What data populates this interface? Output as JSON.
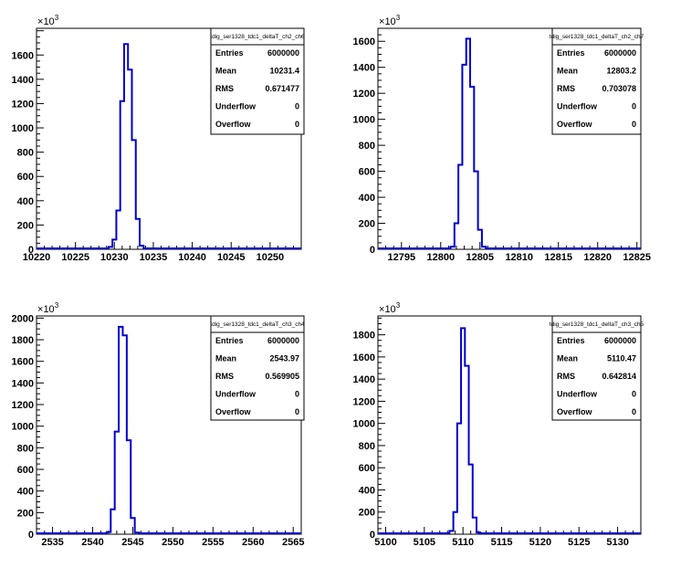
{
  "chart_data": [
    {
      "type": "histogram",
      "title": "tdig_ser1328_tdc1_deltaT_ch2_ch6",
      "y_exponent": "10",
      "y_exponent_power": "3",
      "xlim": [
        10220,
        10254
      ],
      "ylim": [
        0,
        1820
      ],
      "x_ticks": [
        10220,
        10225,
        10230,
        10235,
        10240,
        10245,
        10250
      ],
      "y_ticks": [
        0,
        200,
        400,
        600,
        800,
        1000,
        1200,
        1400,
        1600
      ],
      "bin_width": 0.5,
      "bins": [
        {
          "x": 10229.5,
          "y": 20
        },
        {
          "x": 10230,
          "y": 80
        },
        {
          "x": 10230.5,
          "y": 320
        },
        {
          "x": 10231,
          "y": 1220
        },
        {
          "x": 10231.5,
          "y": 1690
        },
        {
          "x": 10232,
          "y": 1480
        },
        {
          "x": 10232.5,
          "y": 900
        },
        {
          "x": 10233,
          "y": 250
        },
        {
          "x": 10233.5,
          "y": 30
        }
      ],
      "stats": {
        "Entries": "6000000",
        "Mean": "10231.4",
        "RMS": "0.671477",
        "Underflow": "0",
        "Overflow": "0"
      }
    },
    {
      "type": "histogram",
      "title": "tdig_ser1328_tdc1_deltaT_ch2_ch7",
      "y_exponent": "10",
      "y_exponent_power": "3",
      "xlim": [
        12792,
        12825.5
      ],
      "ylim": [
        0,
        1700
      ],
      "x_ticks": [
        12795,
        12800,
        12805,
        12810,
        12815,
        12820,
        12825
      ],
      "y_ticks": [
        0,
        200,
        400,
        600,
        800,
        1000,
        1200,
        1400,
        1600
      ],
      "bin_width": 0.5,
      "bins": [
        {
          "x": 12801.5,
          "y": 20
        },
        {
          "x": 12802,
          "y": 200
        },
        {
          "x": 12802.5,
          "y": 650
        },
        {
          "x": 12803,
          "y": 1420
        },
        {
          "x": 12803.5,
          "y": 1620
        },
        {
          "x": 12804,
          "y": 1250
        },
        {
          "x": 12804.5,
          "y": 600
        },
        {
          "x": 12805,
          "y": 150
        },
        {
          "x": 12805.5,
          "y": 20
        }
      ],
      "stats": {
        "Entries": "6000000",
        "Mean": "12803.2",
        "RMS": "0.703078",
        "Underflow": "0",
        "Overflow": "0"
      }
    },
    {
      "type": "histogram",
      "title": "tdig_ser1328_tdc1_deltaT_ch3_ch4",
      "y_exponent": "10",
      "y_exponent_power": "3",
      "xlim": [
        2533,
        2566
      ],
      "ylim": [
        0,
        2020
      ],
      "x_ticks": [
        2535,
        2540,
        2545,
        2550,
        2555,
        2560,
        2565
      ],
      "y_ticks": [
        0,
        200,
        400,
        600,
        800,
        1000,
        1200,
        1400,
        1600,
        1800,
        2000
      ],
      "bin_width": 0.5,
      "bins": [
        {
          "x": 2542,
          "y": 20
        },
        {
          "x": 2542.5,
          "y": 230
        },
        {
          "x": 2543,
          "y": 950
        },
        {
          "x": 2543.5,
          "y": 1920
        },
        {
          "x": 2544,
          "y": 1840
        },
        {
          "x": 2544.5,
          "y": 870
        },
        {
          "x": 2545,
          "y": 150
        },
        {
          "x": 2545.5,
          "y": 15
        }
      ],
      "stats": {
        "Entries": "6000000",
        "Mean": "2543.97",
        "RMS": "0.569905",
        "Underflow": "0",
        "Overflow": "0"
      }
    },
    {
      "type": "histogram",
      "title": "tdig_ser1328_tdc1_deltaT_ch3_ch5",
      "y_exponent": "10",
      "y_exponent_power": "3",
      "xlim": [
        5099,
        5133
      ],
      "ylim": [
        0,
        1970
      ],
      "x_ticks": [
        5100,
        5105,
        5110,
        5115,
        5120,
        5125,
        5130
      ],
      "y_ticks": [
        0,
        200,
        400,
        600,
        800,
        1000,
        1200,
        1400,
        1600,
        1800
      ],
      "bin_width": 0.5,
      "bins": [
        {
          "x": 5108.5,
          "y": 30
        },
        {
          "x": 5109,
          "y": 200
        },
        {
          "x": 5109.5,
          "y": 1000
        },
        {
          "x": 5110,
          "y": 1860
        },
        {
          "x": 5110.5,
          "y": 1520
        },
        {
          "x": 5111,
          "y": 630
        },
        {
          "x": 5111.5,
          "y": 150
        },
        {
          "x": 5112,
          "y": 15
        }
      ],
      "stats": {
        "Entries": "6000000",
        "Mean": "5110.47",
        "RMS": "0.642814",
        "Underflow": "0",
        "Overflow": "0"
      }
    }
  ],
  "colors": {
    "line": "#0000cc",
    "frame": "#000000",
    "background": "#ffffff"
  }
}
